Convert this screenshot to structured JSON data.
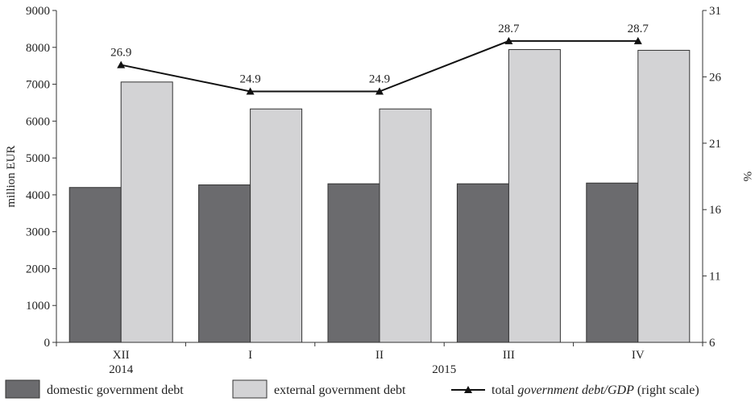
{
  "chart_data": {
    "type": "bar",
    "categories": [
      "XII",
      "I",
      "II",
      "III",
      "IV"
    ],
    "year_labels": [
      {
        "text": "2014",
        "category_index": 0
      },
      {
        "text": "2015",
        "category_index": 2.5
      }
    ],
    "series": [
      {
        "name": "domestic government debt",
        "type": "bar",
        "axis": "left",
        "color": "#6b6b6e",
        "values": [
          4200,
          4270,
          4300,
          4300,
          4320
        ]
      },
      {
        "name": "external government debt",
        "type": "bar",
        "axis": "left",
        "color": "#d3d3d5",
        "values": [
          7060,
          6330,
          6330,
          7940,
          7920
        ]
      },
      {
        "name": "total government debt/GDP (right scale)",
        "type": "line",
        "axis": "right",
        "color": "#111111",
        "values": [
          26.9,
          24.9,
          24.9,
          28.7,
          28.7
        ],
        "data_labels": [
          "26.9",
          "24.9",
          "24.9",
          "28.7",
          "28.7"
        ]
      }
    ],
    "ylabel": "million EUR",
    "y2label": "%",
    "ylim": [
      0,
      9000
    ],
    "yticks": [
      "0",
      "1000",
      "2000",
      "3000",
      "4000",
      "5000",
      "6000",
      "7000",
      "8000",
      "9000"
    ],
    "y2lim": [
      6,
      31
    ],
    "y2ticks": [
      "6",
      "11",
      "16",
      "21",
      "26",
      "31"
    ],
    "grid": false,
    "legend": {
      "position": "bottom",
      "items": [
        {
          "label": "domestic government debt",
          "marker": "box",
          "color": "#6b6b6e"
        },
        {
          "label": "external government debt",
          "marker": "box",
          "color": "#d3d3d5"
        },
        {
          "label_prefix": "total ",
          "label_italic": "government debt/GDP",
          "label_suffix": " (right scale)",
          "marker": "line-triangle",
          "color": "#111111"
        }
      ]
    }
  }
}
